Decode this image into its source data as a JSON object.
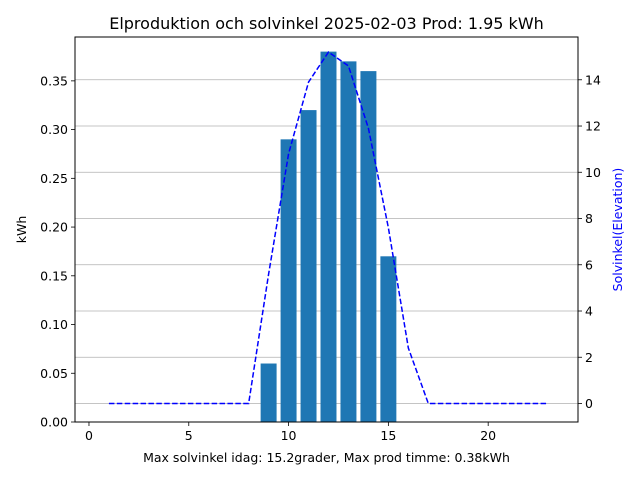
{
  "chart_data": {
    "type": "bar",
    "title": "Elproduktion och solvinkel 2025-02-03 Prod: 1.95 kWh",
    "xlabel": "Max solvinkel idag: 15.2grader, Max prod timme: 0.38kWh",
    "ylabel": "kWh",
    "y2label": "Solvinkel(Elevation)",
    "xlim": [
      -0.7,
      24.5
    ],
    "ylim": [
      0,
      0.395
    ],
    "y2lim": [
      -0.8,
      15.85
    ],
    "x_ticks": [
      0,
      5,
      10,
      15,
      20
    ],
    "y_ticks": [
      0.0,
      0.05,
      0.1,
      0.15,
      0.2,
      0.25,
      0.3,
      0.35
    ],
    "y_tick_labels": [
      "0.00",
      "0.05",
      "0.10",
      "0.15",
      "0.20",
      "0.25",
      "0.30",
      "0.35"
    ],
    "y2_ticks": [
      0,
      2,
      4,
      6,
      8,
      10,
      12,
      14
    ],
    "grid": "horizontal lines at right-axis ticks",
    "series": [
      {
        "type": "bar",
        "color": "#1f77b4",
        "x": [
          9,
          10,
          11,
          12,
          13,
          14,
          15
        ],
        "values": [
          0.06,
          0.29,
          0.32,
          0.38,
          0.37,
          0.36,
          0.17
        ]
      },
      {
        "type": "line",
        "axis": "right",
        "style": "dashed",
        "color": "#0000ff",
        "x": [
          1,
          2,
          3,
          4,
          5,
          6,
          7,
          8,
          9,
          10,
          11,
          12,
          13,
          14,
          15,
          16,
          17,
          18,
          19,
          20,
          21,
          22,
          23
        ],
        "values": [
          0,
          0,
          0,
          0,
          0,
          0,
          0,
          0,
          5.6,
          10.8,
          13.9,
          15.2,
          14.6,
          11.9,
          7.6,
          2.4,
          0,
          0,
          0,
          0,
          0,
          0,
          0
        ]
      }
    ]
  }
}
